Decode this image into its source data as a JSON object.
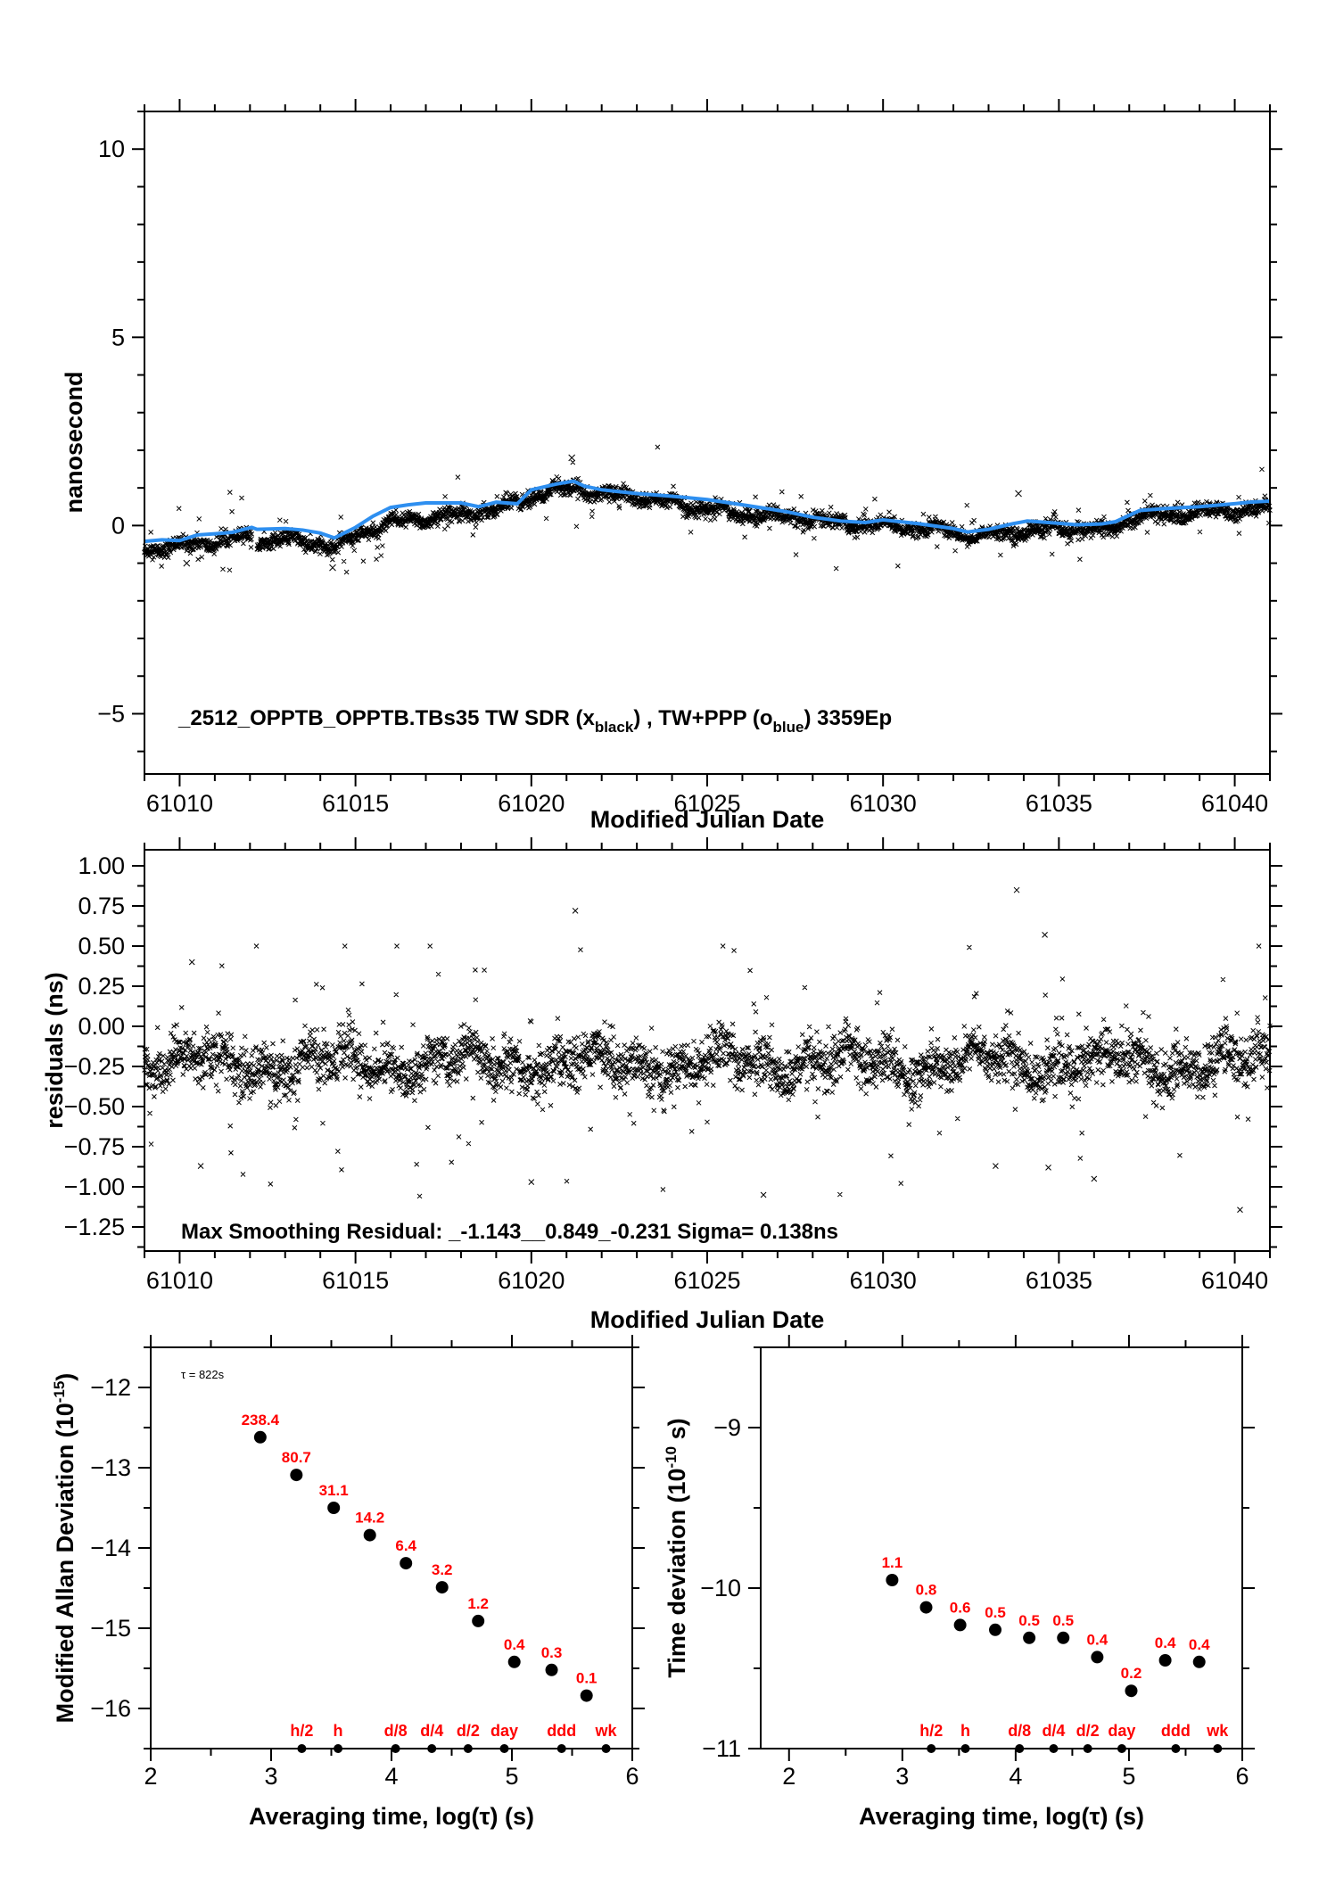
{
  "figure": {
    "colors": {
      "scatter": "#000000",
      "smooth_line": "#2e8ff0",
      "point_labels": "#ff0000",
      "axes": "#000000"
    }
  },
  "chart_data": [
    {
      "id": "time-series",
      "type": "scatter",
      "title": "",
      "annotation": {
        "prefix": "_2512_OPPTB_OPPTB.TBs35    TW SDR (x",
        "sub1": "black",
        "mid": ") ,  TW+PPP (o",
        "sub2": "blue",
        "suffix": ")  3359Ep"
      },
      "xlabel": "Modified Julian Date",
      "ylabel": "nanosecond",
      "xlim": [
        61009,
        61041
      ],
      "ylim": [
        -6.6,
        11
      ],
      "xticks": [
        61010,
        61015,
        61020,
        61025,
        61030,
        61035,
        61040
      ],
      "xtick_labels": [
        "61010",
        "61015",
        "61020",
        "61025",
        "61030",
        "61035",
        "61040"
      ],
      "yticks": [
        -5,
        0,
        5,
        10
      ],
      "ytick_labels": [
        "−5",
        "0",
        "5",
        "10"
      ],
      "grid": false,
      "n_points": 3359,
      "series": [
        {
          "name": "TW SDR (x black)",
          "marker": "x",
          "trend_x": [
            61009,
            61010,
            61011,
            61012,
            61012.2,
            61013,
            61014,
            61014.4,
            61015,
            61016,
            61017,
            61018,
            61019,
            61020,
            61020.7,
            61021.3,
            61022,
            61023,
            61024,
            61025,
            61026,
            61027,
            61028,
            61029,
            61030,
            61031,
            61032,
            61032.4,
            61033,
            61034,
            61035,
            61036,
            61036.4,
            61037,
            61038,
            61039,
            61040,
            61041
          ],
          "trend_y": [
            -0.65,
            -0.55,
            -0.42,
            -0.3,
            -0.42,
            -0.38,
            -0.5,
            -0.62,
            -0.25,
            0.05,
            0.2,
            0.3,
            0.45,
            0.75,
            0.95,
            1.0,
            0.85,
            0.75,
            0.6,
            0.45,
            0.3,
            0.25,
            0.15,
            0.05,
            0.0,
            -0.05,
            -0.15,
            -0.3,
            -0.25,
            -0.15,
            -0.1,
            -0.1,
            -0.15,
            0.2,
            0.3,
            0.35,
            0.4,
            0.45
          ],
          "noise_sigma": 0.138,
          "gaps": [
            [
              61012.05,
              61012.2
            ]
          ]
        },
        {
          "name": "TW+PPP (o blue)",
          "type": "line",
          "x": [
            61009,
            61009.5,
            61010,
            61010.5,
            61011,
            61011.5,
            61012.05,
            61012.2,
            61013,
            61013.5,
            61014,
            61014.4,
            61015,
            61015.5,
            61016,
            61016.5,
            61017,
            61018,
            61018.5,
            61019,
            61019.6,
            61020,
            61020.7,
            61021.2,
            61021.5,
            61022,
            61023,
            61024,
            61025,
            61026,
            61026.7,
            61027.3,
            61028,
            61028.8,
            61029.5,
            61030,
            61031,
            61032,
            61032.4,
            61033,
            61033.7,
            61034.1,
            61035,
            61035.5,
            61036.2,
            61036.6,
            61037.3,
            61038,
            61039,
            61040,
            61040.4,
            61041
          ],
          "y": [
            -0.42,
            -0.38,
            -0.4,
            -0.25,
            -0.22,
            -0.18,
            -0.05,
            -0.1,
            -0.08,
            -0.12,
            -0.2,
            -0.33,
            -0.05,
            0.25,
            0.48,
            0.55,
            0.6,
            0.6,
            0.5,
            0.62,
            0.58,
            0.95,
            1.1,
            1.18,
            1.05,
            0.95,
            0.85,
            0.78,
            0.69,
            0.55,
            0.45,
            0.36,
            0.22,
            0.12,
            0.08,
            0.15,
            0.05,
            -0.08,
            -0.17,
            -0.1,
            0.05,
            0.12,
            0.06,
            0.02,
            0.04,
            0.1,
            0.4,
            0.45,
            0.5,
            0.58,
            0.62,
            0.65
          ]
        }
      ],
      "outliers": [
        {
          "x": 61021.15,
          "y": 1.8
        },
        {
          "x": 61033.85,
          "y": 0.85
        },
        {
          "x": 61014.35,
          "y": -1.12
        },
        {
          "x": 61010.2,
          "y": -1.0
        }
      ]
    },
    {
      "id": "residuals",
      "type": "scatter",
      "xlabel": "Modified Julian Date",
      "ylabel": "residuals (ns)",
      "annotation": "Max Smoothing Residual: _-1.143__0.849_-0.231  Sigma= 0.138ns",
      "xlim": [
        61009,
        61041
      ],
      "ylim": [
        -1.4,
        1.1
      ],
      "xticks": [
        61010,
        61015,
        61020,
        61025,
        61030,
        61035,
        61040
      ],
      "xtick_labels": [
        "61010",
        "61015",
        "61020",
        "61025",
        "61030",
        "61035",
        "61040"
      ],
      "yticks": [
        -1.25,
        -1.0,
        -0.75,
        -0.5,
        -0.25,
        0.0,
        0.25,
        0.5,
        0.75,
        1.0
      ],
      "ytick_labels": [
        "−1.25",
        "−1.00",
        "−0.75",
        "−0.50",
        "−0.25",
        "0.00",
        "0.25",
        "0.50",
        "0.75",
        "1.00"
      ],
      "grid": false,
      "min": -1.143,
      "max": 0.849,
      "mean": -0.231,
      "sigma": 0.138,
      "n_points": 3359,
      "outliers": [
        {
          "x": 61033.8,
          "y": 0.849
        },
        {
          "x": 61034.6,
          "y": 0.57
        },
        {
          "x": 61021.25,
          "y": 0.72
        },
        {
          "x": 61010.35,
          "y": 0.4
        },
        {
          "x": 61040.15,
          "y": -1.143
        },
        {
          "x": 61026.6,
          "y": -1.05
        },
        {
          "x": 61020.0,
          "y": -0.97
        },
        {
          "x": 61036.0,
          "y": -0.95
        },
        {
          "x": 61010.6,
          "y": -0.87
        },
        {
          "x": 61033.2,
          "y": -0.87
        },
        {
          "x": 61034.7,
          "y": -0.88
        }
      ]
    },
    {
      "id": "mdev",
      "type": "scatter",
      "xlabel": "Averaging time, log(τ) (s)",
      "ylabel": "Modified Allan Deviation (10",
      "ylabel_sup": "-15",
      "ylabel_end": ")",
      "annotation": "τ = 822s",
      "xlim": [
        2,
        6
      ],
      "ylim": [
        -16.5,
        -11.5
      ],
      "xticks": [
        2,
        3,
        4,
        5,
        6
      ],
      "xtick_labels": [
        "2",
        "3",
        "4",
        "5",
        "6"
      ],
      "yticks": [
        -16,
        -15,
        -14,
        -13,
        -12
      ],
      "ytick_labels": [
        "−16",
        "−15",
        "−14",
        "−13",
        "−12"
      ],
      "grid": false,
      "x": [
        2.91,
        3.21,
        3.52,
        3.82,
        4.12,
        4.42,
        4.72,
        5.02,
        5.33,
        5.62
      ],
      "y": [
        -12.62,
        -13.09,
        -13.5,
        -13.84,
        -14.19,
        -14.49,
        -14.91,
        -15.42,
        -15.52,
        -15.84
      ],
      "labels": [
        "238.4",
        "80.7",
        "31.1",
        "14.2",
        "6.4",
        "3.2",
        "1.2",
        "0.4",
        "0.3",
        "0.1"
      ],
      "time_markers": [
        {
          "label": "h/2",
          "x": 3.255
        },
        {
          "label": "h",
          "x": 3.556
        },
        {
          "label": "d/8",
          "x": 4.034
        },
        {
          "label": "d/4",
          "x": 4.335
        },
        {
          "label": "d/2",
          "x": 4.636
        },
        {
          "label": "day",
          "x": 4.937
        },
        {
          "label": "ddd",
          "x": 5.413
        },
        {
          "label": "wk",
          "x": 5.782
        }
      ]
    },
    {
      "id": "tdev",
      "type": "scatter",
      "xlabel": "Averaging time, log(τ) (s)",
      "ylabel": "Time deviation (10",
      "ylabel_sup": "-10",
      "ylabel_end": " s)",
      "xlim": [
        1.75,
        6
      ],
      "ylim": [
        -11,
        -8.5
      ],
      "xticks": [
        2,
        3,
        4,
        5,
        6
      ],
      "xtick_labels": [
        "2",
        "3",
        "4",
        "5",
        "6"
      ],
      "yticks": [
        -11,
        -10,
        -9
      ],
      "ytick_labels": [
        "−11",
        "−10",
        "−9"
      ],
      "grid": false,
      "x": [
        2.91,
        3.21,
        3.51,
        3.82,
        4.12,
        4.42,
        4.72,
        5.02,
        5.32,
        5.62
      ],
      "y": [
        -9.95,
        -10.12,
        -10.23,
        -10.26,
        -10.31,
        -10.31,
        -10.43,
        -10.64,
        -10.45,
        -10.46
      ],
      "labels": [
        "1.1",
        "0.8",
        "0.6",
        "0.5",
        "0.5",
        "0.5",
        "0.4",
        "0.2",
        "0.4",
        "0.4"
      ],
      "time_markers": [
        {
          "label": "h/2",
          "x": 3.255
        },
        {
          "label": "h",
          "x": 3.556
        },
        {
          "label": "d/8",
          "x": 4.034
        },
        {
          "label": "d/4",
          "x": 4.335
        },
        {
          "label": "d/2",
          "x": 4.636
        },
        {
          "label": "day",
          "x": 4.937
        },
        {
          "label": "ddd",
          "x": 5.413
        },
        {
          "label": "wk",
          "x": 5.782
        }
      ]
    }
  ]
}
